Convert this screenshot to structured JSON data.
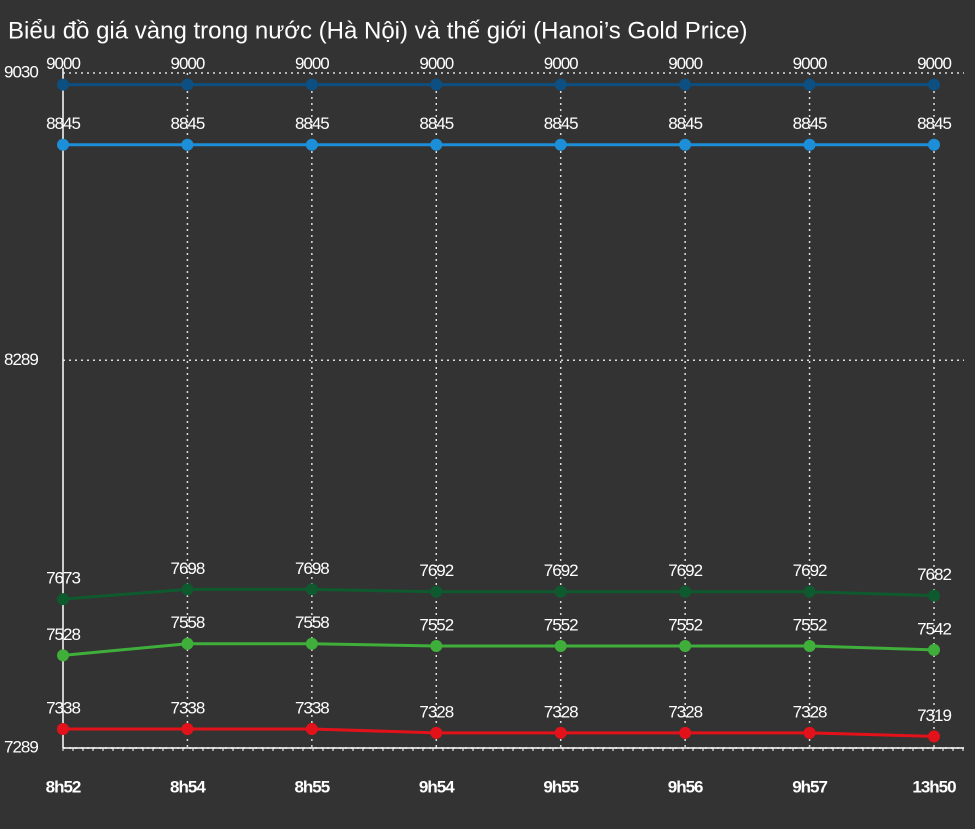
{
  "chart_data": {
    "type": "line",
    "title": "Biểu đồ giá vàng trong nước (Hà Nội) và thế giới (Hanoi’s Gold Price)",
    "categories": [
      "8h52",
      "8h54",
      "8h55",
      "9h54",
      "9h55",
      "9h56",
      "9h57",
      "13h50"
    ],
    "series": [
      {
        "color": "#0c4f80",
        "values": [
          9000,
          9000,
          9000,
          9000,
          9000,
          9000,
          9000,
          9000
        ]
      },
      {
        "color": "#1c8fd8",
        "values": [
          8845,
          8845,
          8845,
          8845,
          8845,
          8845,
          8845,
          8845
        ]
      },
      {
        "color": "#0e5a2e",
        "values": [
          7673,
          7698,
          7698,
          7692,
          7692,
          7692,
          7692,
          7682
        ]
      },
      {
        "color": "#3fae3a",
        "values": [
          7528,
          7558,
          7558,
          7552,
          7552,
          7552,
          7552,
          7542
        ]
      },
      {
        "color": "#e3121a",
        "values": [
          7338,
          7338,
          7338,
          7328,
          7328,
          7328,
          7328,
          7319
        ]
      }
    ],
    "ylim": [
      7289,
      9030
    ],
    "yticks": [
      7289,
      8289,
      9030
    ],
    "grid": true
  }
}
